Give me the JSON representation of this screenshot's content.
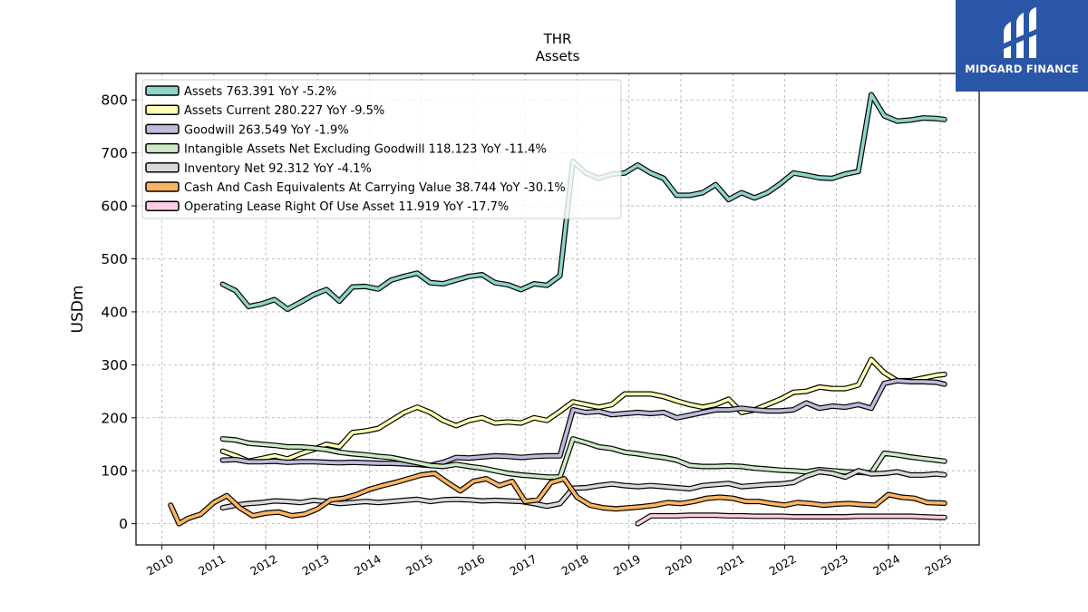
{
  "chart_data": {
    "type": "line",
    "title": "THR",
    "subtitle": "Assets",
    "ylabel": "USDm",
    "xlabel": "",
    "x_ticks": [
      "2010",
      "2011",
      "2012",
      "2013",
      "2014",
      "2015",
      "2016",
      "2017",
      "2018",
      "2019",
      "2020",
      "2021",
      "2022",
      "2023",
      "2024",
      "2025"
    ],
    "y_ticks": [
      0,
      100,
      200,
      300,
      400,
      500,
      600,
      700,
      800
    ],
    "xlim": [
      2009.5,
      2025.75
    ],
    "ylim": [
      -40,
      850
    ],
    "grid": true,
    "legend_position": "top-left",
    "series": [
      {
        "name": "Assets",
        "legend": "Assets  763.391 YoY -5.2%",
        "color": "#8dd3c7",
        "x": [
          2011.17,
          2011.42,
          2011.67,
          2011.92,
          2012.17,
          2012.42,
          2012.67,
          2012.92,
          2013.17,
          2013.42,
          2013.67,
          2013.92,
          2014.17,
          2014.42,
          2014.67,
          2014.92,
          2015.17,
          2015.42,
          2015.67,
          2015.92,
          2016.17,
          2016.42,
          2016.67,
          2016.92,
          2017.17,
          2017.42,
          2017.67,
          2017.92,
          2018.17,
          2018.42,
          2018.67,
          2018.92,
          2019.17,
          2019.42,
          2019.67,
          2019.92,
          2020.17,
          2020.42,
          2020.67,
          2020.92,
          2021.17,
          2021.42,
          2021.67,
          2021.92,
          2022.17,
          2022.42,
          2022.67,
          2022.92,
          2023.17,
          2023.42,
          2023.67,
          2023.92,
          2024.17,
          2024.42,
          2024.67,
          2024.92,
          2025.08
        ],
        "y": [
          452,
          440,
          410,
          415,
          423,
          405,
          418,
          432,
          442,
          420,
          447,
          448,
          443,
          460,
          467,
          473,
          455,
          453,
          460,
          467,
          470,
          455,
          451,
          442,
          453,
          450,
          468,
          684,
          662,
          652,
          660,
          662,
          677,
          662,
          652,
          620,
          620,
          625,
          640,
          612,
          625,
          615,
          625,
          642,
          662,
          658,
          653,
          652,
          660,
          665,
          810,
          770,
          760,
          762,
          766,
          765,
          763
        ]
      },
      {
        "name": "Assets Current",
        "legend": "Assets Current  280.227 YoY -9.5%",
        "color": "#ffffb3",
        "x": [
          2011.17,
          2011.42,
          2011.67,
          2011.92,
          2012.17,
          2012.42,
          2012.67,
          2012.92,
          2013.17,
          2013.42,
          2013.67,
          2013.92,
          2014.17,
          2014.42,
          2014.67,
          2014.92,
          2015.17,
          2015.42,
          2015.67,
          2015.92,
          2016.17,
          2016.42,
          2016.67,
          2016.92,
          2017.17,
          2017.42,
          2017.67,
          2017.92,
          2018.17,
          2018.42,
          2018.67,
          2018.92,
          2019.17,
          2019.42,
          2019.67,
          2019.92,
          2020.17,
          2020.42,
          2020.67,
          2020.92,
          2021.17,
          2021.42,
          2021.67,
          2021.92,
          2022.17,
          2022.42,
          2022.67,
          2022.92,
          2023.17,
          2023.42,
          2023.67,
          2023.92,
          2024.17,
          2024.42,
          2024.67,
          2024.92,
          2025.08
        ],
        "y": [
          137,
          128,
          118,
          123,
          128,
          122,
          132,
          140,
          150,
          145,
          172,
          175,
          180,
          195,
          210,
          220,
          210,
          195,
          185,
          195,
          200,
          190,
          192,
          190,
          200,
          195,
          212,
          230,
          225,
          220,
          225,
          245,
          245,
          245,
          240,
          232,
          225,
          220,
          225,
          235,
          210,
          215,
          225,
          235,
          248,
          250,
          258,
          255,
          255,
          262,
          310,
          285,
          270,
          270,
          275,
          280,
          282
        ]
      },
      {
        "name": "Goodwill",
        "legend": "Goodwill  263.549 YoY -1.9%",
        "color": "#bebada",
        "x": [
          2011.17,
          2011.42,
          2011.67,
          2011.92,
          2012.17,
          2012.42,
          2012.67,
          2012.92,
          2013.17,
          2013.42,
          2013.67,
          2013.92,
          2014.17,
          2014.42,
          2014.67,
          2014.92,
          2015.17,
          2015.42,
          2015.67,
          2015.92,
          2016.17,
          2016.42,
          2016.67,
          2016.92,
          2017.17,
          2017.42,
          2017.67,
          2017.92,
          2018.17,
          2018.42,
          2018.67,
          2018.92,
          2019.17,
          2019.42,
          2019.67,
          2019.92,
          2020.17,
          2020.42,
          2020.67,
          2020.92,
          2021.17,
          2021.42,
          2021.67,
          2021.92,
          2022.17,
          2022.42,
          2022.67,
          2022.92,
          2023.17,
          2023.42,
          2023.67,
          2023.92,
          2024.17,
          2024.42,
          2024.67,
          2024.92,
          2025.08
        ],
        "y": [
          120,
          121,
          117,
          117,
          118,
          116,
          117,
          117,
          116,
          115,
          116,
          115,
          114,
          114,
          113,
          112,
          110,
          116,
          125,
          124,
          126,
          128,
          127,
          125,
          127,
          128,
          128,
          215,
          210,
          212,
          206,
          208,
          210,
          208,
          210,
          200,
          205,
          210,
          215,
          215,
          218,
          215,
          213,
          213,
          215,
          228,
          218,
          222,
          220,
          225,
          218,
          265,
          270,
          268,
          268,
          267,
          263.5
        ]
      },
      {
        "name": "Intangible Assets Net Excluding Goodwill",
        "legend": "Intangible Assets Net Excluding Goodwill  118.123 YoY -11.4%",
        "color": "#ccebc5",
        "x": [
          2011.17,
          2011.42,
          2011.67,
          2011.92,
          2012.17,
          2012.42,
          2012.67,
          2012.92,
          2013.17,
          2013.42,
          2013.67,
          2013.92,
          2014.17,
          2014.42,
          2014.67,
          2014.92,
          2015.17,
          2015.42,
          2015.67,
          2015.92,
          2016.17,
          2016.42,
          2016.67,
          2016.92,
          2017.17,
          2017.42,
          2017.67,
          2017.92,
          2018.17,
          2018.42,
          2018.67,
          2018.92,
          2019.17,
          2019.42,
          2019.67,
          2019.92,
          2020.17,
          2020.42,
          2020.67,
          2020.92,
          2021.17,
          2021.42,
          2021.67,
          2021.92,
          2022.17,
          2022.42,
          2022.67,
          2022.92,
          2023.17,
          2023.42,
          2023.67,
          2023.92,
          2024.17,
          2024.42,
          2024.67,
          2024.92,
          2025.08
        ],
        "y": [
          160,
          158,
          152,
          150,
          148,
          145,
          145,
          143,
          140,
          135,
          132,
          130,
          127,
          125,
          120,
          115,
          110,
          108,
          112,
          108,
          105,
          100,
          95,
          92,
          90,
          88,
          88,
          160,
          153,
          145,
          142,
          135,
          132,
          128,
          125,
          120,
          110,
          108,
          108,
          109,
          108,
          105,
          103,
          101,
          100,
          98,
          102,
          100,
          98,
          97,
          96,
          133,
          130,
          126,
          123,
          120,
          118
        ]
      },
      {
        "name": "Inventory Net",
        "legend": "Inventory Net  92.312 YoY -4.1%",
        "color": "#d9d9d9",
        "x": [
          2011.17,
          2011.42,
          2011.67,
          2011.92,
          2012.17,
          2012.42,
          2012.67,
          2012.92,
          2013.17,
          2013.42,
          2013.67,
          2013.92,
          2014.17,
          2014.42,
          2014.67,
          2014.92,
          2015.17,
          2015.42,
          2015.67,
          2015.92,
          2016.17,
          2016.42,
          2016.67,
          2016.92,
          2017.17,
          2017.42,
          2017.67,
          2017.92,
          2018.17,
          2018.42,
          2018.67,
          2018.92,
          2019.17,
          2019.42,
          2019.67,
          2019.92,
          2020.17,
          2020.42,
          2020.67,
          2020.92,
          2021.17,
          2021.42,
          2021.67,
          2021.92,
          2022.17,
          2022.42,
          2022.67,
          2022.92,
          2023.17,
          2023.42,
          2023.67,
          2023.92,
          2024.17,
          2024.42,
          2024.67,
          2024.92,
          2025.08
        ],
        "y": [
          30,
          35,
          38,
          40,
          43,
          42,
          40,
          44,
          42,
          38,
          40,
          42,
          40,
          42,
          44,
          46,
          42,
          45,
          46,
          45,
          43,
          44,
          43,
          42,
          38,
          33,
          38,
          67,
          68,
          72,
          75,
          72,
          70,
          72,
          70,
          68,
          66,
          72,
          74,
          76,
          70,
          72,
          74,
          75,
          78,
          90,
          98,
          95,
          88,
          100,
          94,
          95,
          98,
          92,
          92,
          94,
          92.3
        ]
      },
      {
        "name": "Cash And Cash Equivalents At Carrying Value",
        "legend": "Cash And Cash Equivalents At Carrying Value  38.744 YoY -30.1%",
        "color": "#fdb462",
        "x": [
          2010.17,
          2010.33,
          2010.5,
          2010.75,
          2011.0,
          2011.25,
          2011.5,
          2011.75,
          2012.0,
          2012.25,
          2012.5,
          2012.75,
          2013.0,
          2013.25,
          2013.5,
          2013.75,
          2014.0,
          2014.25,
          2014.5,
          2014.75,
          2015.0,
          2015.25,
          2015.5,
          2015.75,
          2016.0,
          2016.25,
          2016.5,
          2016.75,
          2017.0,
          2017.25,
          2017.5,
          2017.75,
          2018.0,
          2018.25,
          2018.5,
          2018.75,
          2019.0,
          2019.25,
          2019.5,
          2019.75,
          2020.0,
          2020.25,
          2020.5,
          2020.75,
          2021.0,
          2021.25,
          2021.5,
          2021.75,
          2022.0,
          2022.25,
          2022.5,
          2022.75,
          2023.0,
          2023.25,
          2023.5,
          2023.75,
          2024.0,
          2024.25,
          2024.5,
          2024.75,
          2025.08
        ],
        "y": [
          35,
          0,
          10,
          18,
          40,
          53,
          30,
          15,
          20,
          22,
          15,
          18,
          28,
          45,
          48,
          55,
          65,
          72,
          78,
          85,
          92,
          95,
          78,
          62,
          80,
          85,
          72,
          80,
          42,
          45,
          78,
          85,
          50,
          35,
          30,
          28,
          30,
          32,
          35,
          40,
          38,
          42,
          48,
          50,
          48,
          42,
          42,
          38,
          35,
          40,
          38,
          35,
          37,
          38,
          36,
          35,
          55,
          50,
          48,
          40,
          38.7
        ]
      },
      {
        "name": "Operating Lease Right Of Use Asset",
        "legend": "Operating Lease Right Of Use Asset  11.919 YoY -17.7%",
        "color": "#fccde5",
        "x": [
          2019.17,
          2019.42,
          2019.67,
          2019.92,
          2020.17,
          2020.42,
          2020.67,
          2020.92,
          2021.17,
          2021.42,
          2021.67,
          2021.92,
          2022.17,
          2022.42,
          2022.67,
          2022.92,
          2023.17,
          2023.42,
          2023.67,
          2023.92,
          2024.17,
          2024.42,
          2024.67,
          2024.92,
          2025.08
        ],
        "y": [
          0,
          15,
          15,
          15,
          16,
          16,
          16,
          15,
          15,
          14,
          14,
          14,
          13,
          13,
          13,
          13,
          13,
          14,
          14,
          14,
          14,
          14,
          13,
          12,
          11.9
        ]
      }
    ]
  },
  "brand": {
    "name": "MIDGARD FINANCE",
    "color": "#2a56a8"
  }
}
